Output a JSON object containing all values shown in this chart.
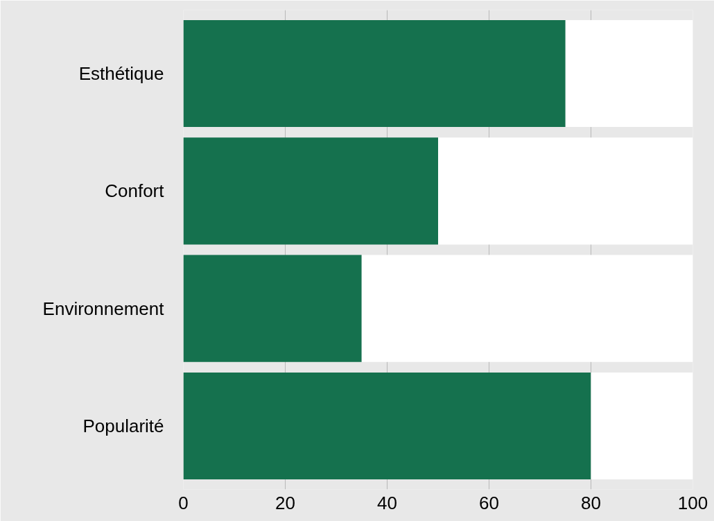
{
  "chart_data": {
    "type": "bar",
    "orientation": "horizontal",
    "stacked": true,
    "categories": [
      "Esthétique",
      "Confort",
      "Environnement",
      "Popularité"
    ],
    "series": [
      {
        "color": "#15714e",
        "values": [
          75,
          50,
          35,
          80
        ]
      },
      {
        "color": "#ffffff",
        "values": [
          25,
          50,
          65,
          20
        ]
      }
    ],
    "xlim": [
      0,
      100
    ],
    "xticks": [
      0,
      20,
      40,
      60,
      80,
      100
    ],
    "grid": "x"
  }
}
